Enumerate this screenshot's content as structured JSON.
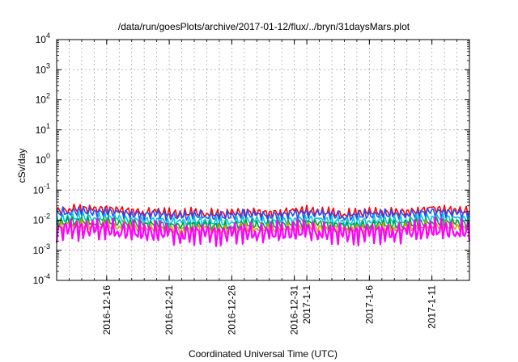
{
  "chart_data": {
    "type": "line",
    "title": "/data/run/goesPlots/archive/2017-01-12/flux/../bryn/31daysMars.plot",
    "xlabel": "Coordinated Universal Time (UTC)",
    "ylabel": "cSv/day",
    "yscale": "log",
    "ylim": [
      0.0001,
      10000
    ],
    "xlim": [
      "2016-12-12",
      "2017-01-14"
    ],
    "grid": true,
    "y_ticks": [
      {
        "base": "10",
        "exp": "-4"
      },
      {
        "base": "10",
        "exp": "-3"
      },
      {
        "base": "10",
        "exp": "-2"
      },
      {
        "base": "10",
        "exp": "-1"
      },
      {
        "base": "10",
        "exp": "0"
      },
      {
        "base": "10",
        "exp": "1"
      },
      {
        "base": "10",
        "exp": "2"
      },
      {
        "base": "10",
        "exp": "3"
      },
      {
        "base": "10",
        "exp": "4"
      }
    ],
    "x_ticks": [
      {
        "date": "2016-12-16",
        "label": "2016-12-16"
      },
      {
        "date": "2016-12-21",
        "label": "2016-12-21"
      },
      {
        "date": "2016-12-26",
        "label": "2016-12-26"
      },
      {
        "date": "2016-12-31",
        "label": "2016-12-31"
      },
      {
        "date": "2017-01-01",
        "label": "2017-1-1"
      },
      {
        "date": "2017-01-06",
        "label": "2017-1-6"
      },
      {
        "date": "2017-01-11",
        "label": "2017-1-11"
      }
    ],
    "x": [
      "2016-12-12",
      "2016-12-13",
      "2016-12-14",
      "2016-12-15",
      "2016-12-16",
      "2016-12-17",
      "2016-12-18",
      "2016-12-19",
      "2016-12-20",
      "2016-12-21",
      "2016-12-22",
      "2016-12-23",
      "2016-12-24",
      "2016-12-25",
      "2016-12-26",
      "2016-12-27",
      "2016-12-28",
      "2016-12-29",
      "2016-12-30",
      "2016-12-31",
      "2017-01-01",
      "2017-01-02",
      "2017-01-03",
      "2017-01-04",
      "2017-01-05",
      "2017-01-06",
      "2017-01-07",
      "2017-01-08",
      "2017-01-09",
      "2017-01-10",
      "2017-01-11",
      "2017-01-12",
      "2017-01-13",
      "2017-01-14"
    ],
    "series": [
      {
        "color": "#ff0000",
        "values": [
          0.02,
          0.023,
          0.025,
          0.022,
          0.024,
          0.021,
          0.02,
          0.018,
          0.019,
          0.017,
          0.016,
          0.018,
          0.017,
          0.016,
          0.017,
          0.019,
          0.018,
          0.017,
          0.018,
          0.02,
          0.021,
          0.019,
          0.018,
          0.016,
          0.017,
          0.018,
          0.019,
          0.018,
          0.019,
          0.02,
          0.024,
          0.022,
          0.021,
          0.02
        ]
      },
      {
        "color": "#1f4fff",
        "values": [
          0.017,
          0.019,
          0.02,
          0.018,
          0.019,
          0.017,
          0.016,
          0.015,
          0.016,
          0.014,
          0.013,
          0.015,
          0.014,
          0.013,
          0.014,
          0.016,
          0.015,
          0.014,
          0.015,
          0.016,
          0.017,
          0.016,
          0.015,
          0.013,
          0.014,
          0.015,
          0.016,
          0.015,
          0.016,
          0.017,
          0.019,
          0.018,
          0.017,
          0.016
        ]
      },
      {
        "color": "#00c8e0",
        "values": [
          0.011,
          0.012,
          0.013,
          0.012,
          0.012,
          0.011,
          0.01,
          0.0095,
          0.01,
          0.009,
          0.0085,
          0.0095,
          0.009,
          0.0085,
          0.009,
          0.01,
          0.0095,
          0.009,
          0.0095,
          0.01,
          0.011,
          0.01,
          0.0095,
          0.0085,
          0.009,
          0.0095,
          0.01,
          0.0095,
          0.01,
          0.011,
          0.012,
          0.0115,
          0.011,
          0.0105
        ]
      },
      {
        "color": "#00a040",
        "values": [
          0.008,
          0.0088,
          0.0092,
          0.0085,
          0.0088,
          0.008,
          0.0075,
          0.007,
          0.0074,
          0.0066,
          0.0062,
          0.007,
          0.0066,
          0.0062,
          0.0066,
          0.0074,
          0.007,
          0.0066,
          0.007,
          0.0075,
          0.008,
          0.0074,
          0.007,
          0.0062,
          0.0066,
          0.007,
          0.0074,
          0.007,
          0.0074,
          0.008,
          0.0088,
          0.0084,
          0.008,
          0.0076
        ]
      },
      {
        "color": "#d4a000",
        "values": [
          0.0062,
          0.0068,
          0.0071,
          0.0066,
          0.0068,
          0.0062,
          0.0058,
          0.0054,
          0.0057,
          0.0051,
          0.0048,
          0.0054,
          0.0051,
          0.0048,
          0.0051,
          0.0057,
          0.0054,
          0.0051,
          0.0054,
          0.0058,
          0.0062,
          0.0057,
          0.0054,
          0.0048,
          0.0051,
          0.0054,
          0.0057,
          0.0054,
          0.0057,
          0.0062,
          0.0068,
          0.0065,
          0.0062,
          0.0059
        ]
      },
      {
        "color": "#ff00ff",
        "values": [
          0.0045,
          0.005,
          0.0052,
          0.0048,
          0.005,
          0.0045,
          0.0042,
          0.0039,
          0.0041,
          0.0037,
          0.0034,
          0.0039,
          0.0037,
          0.0034,
          0.0037,
          0.0041,
          0.0039,
          0.0037,
          0.0039,
          0.0042,
          0.0045,
          0.0041,
          0.0039,
          0.0034,
          0.0037,
          0.0039,
          0.0041,
          0.0039,
          0.0041,
          0.0045,
          0.005,
          0.0047,
          0.0045,
          0.0043
        ]
      }
    ]
  }
}
